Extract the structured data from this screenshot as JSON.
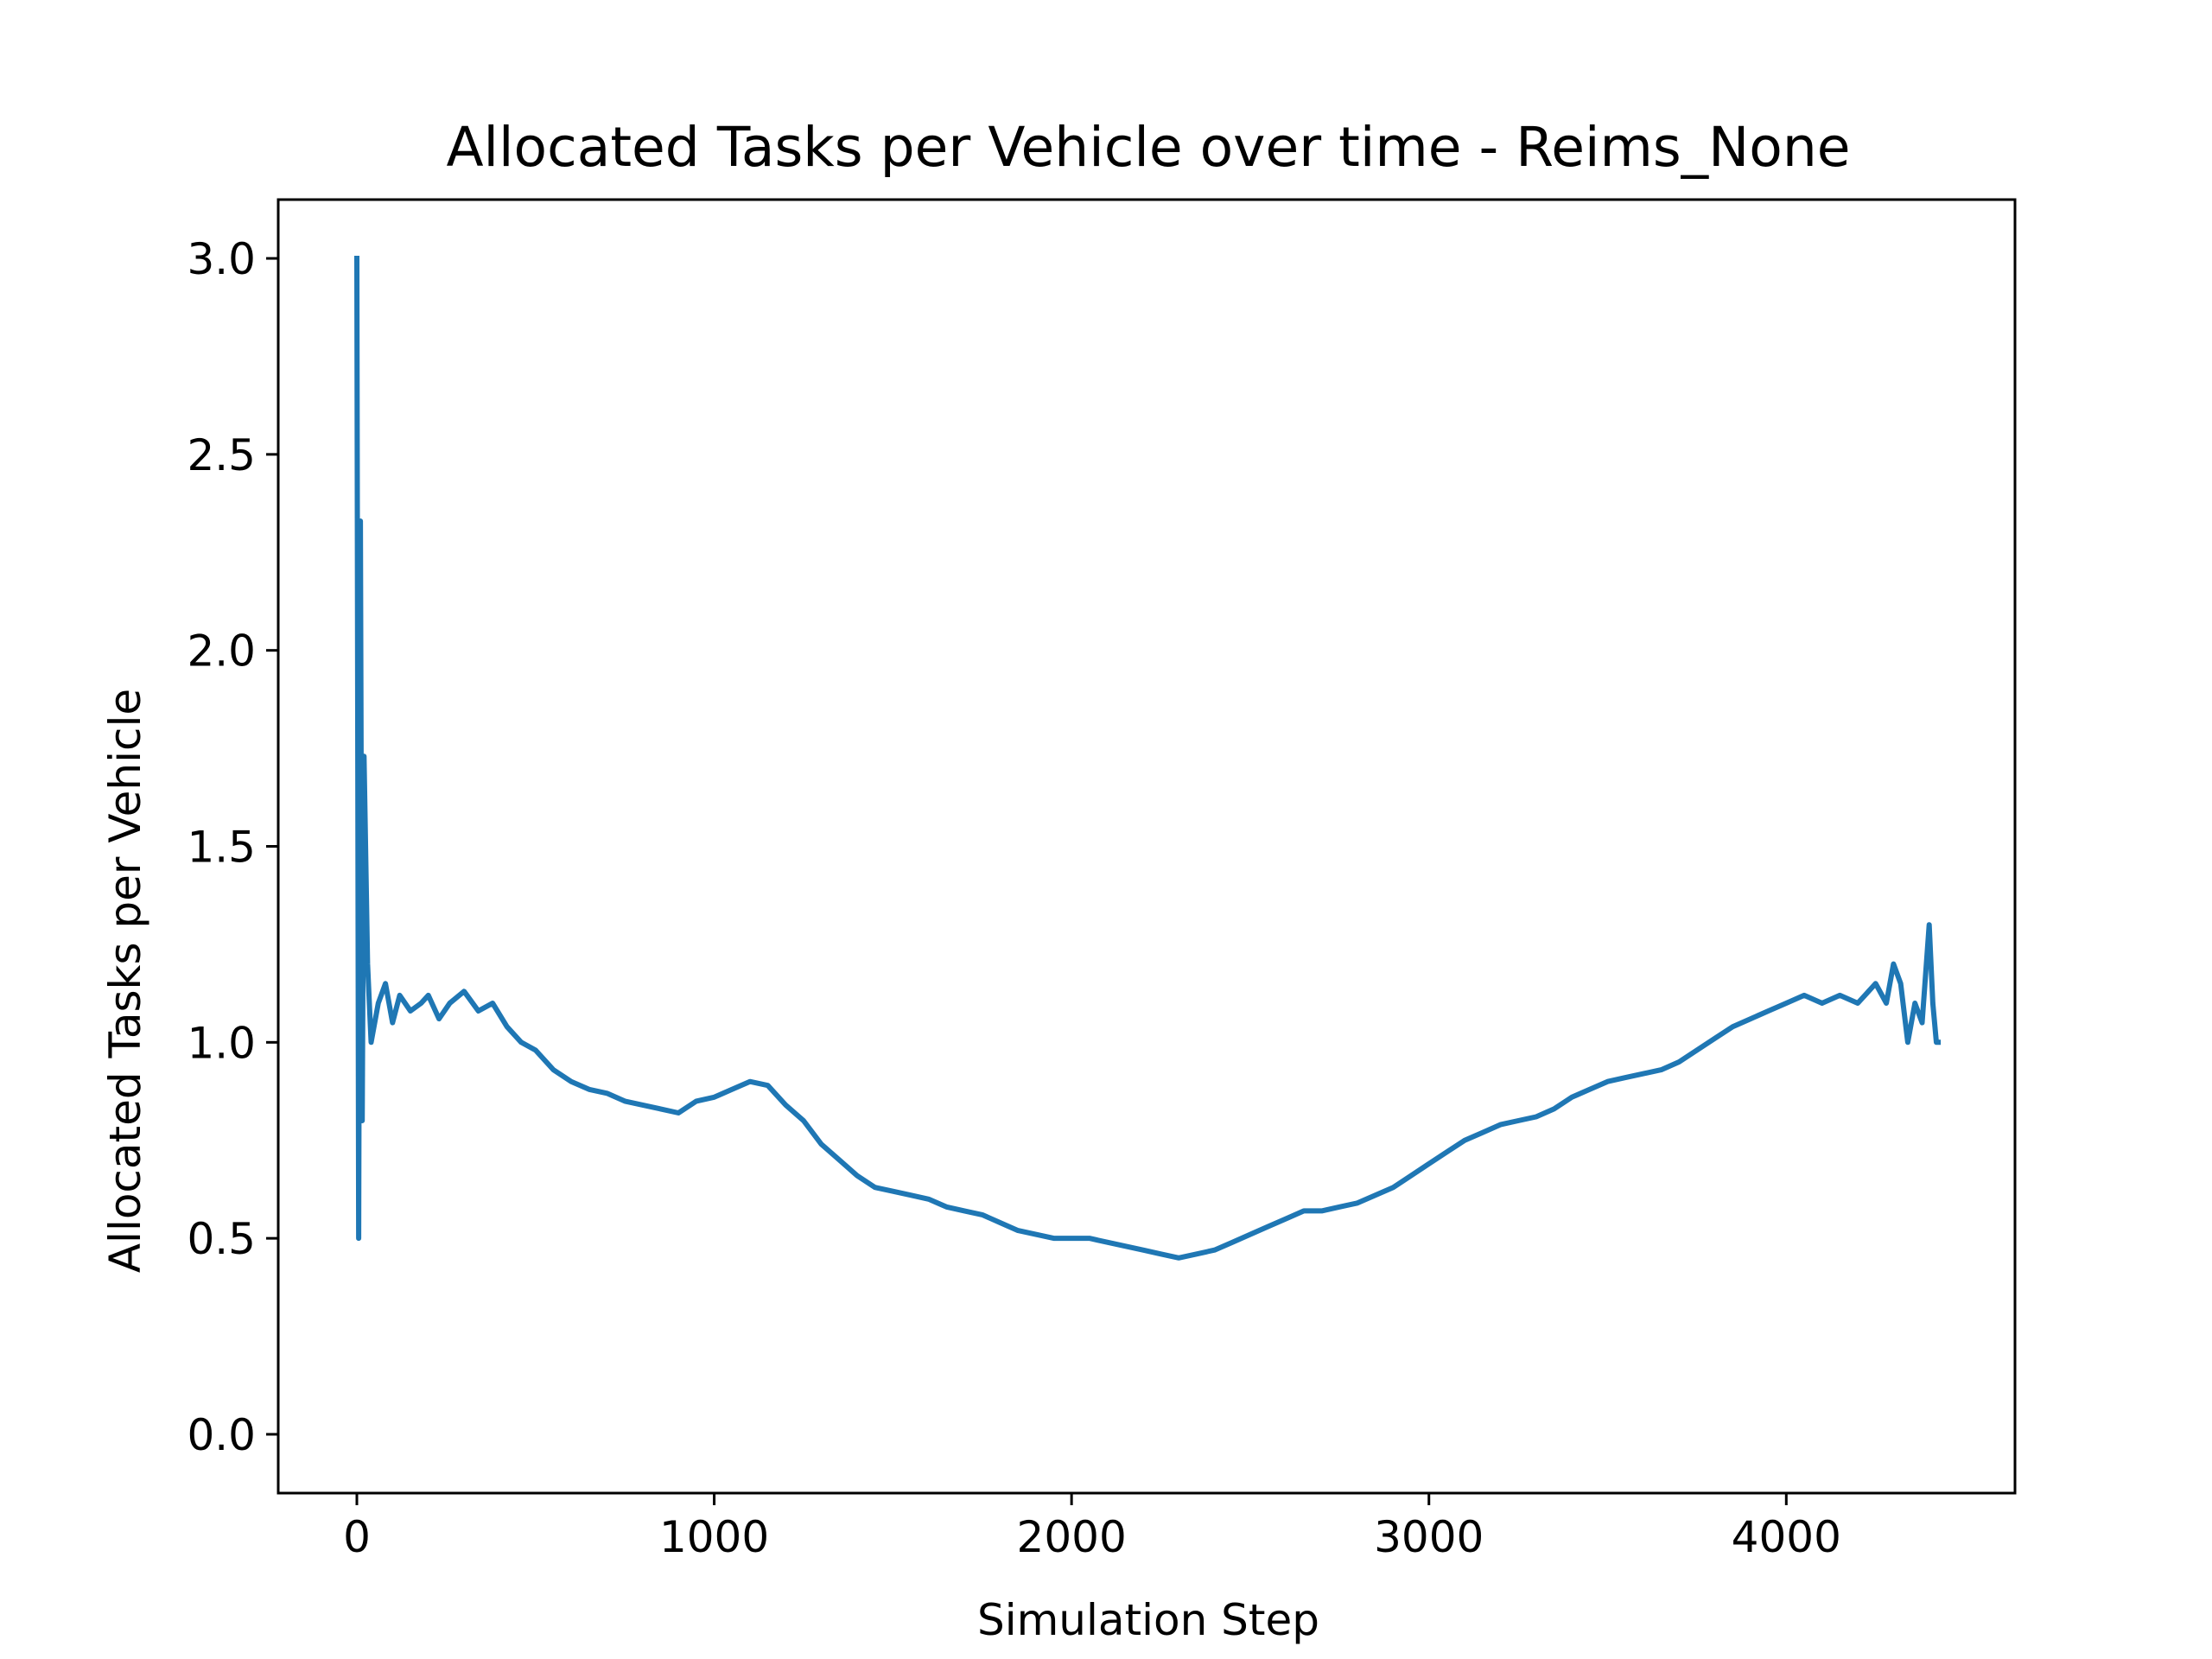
{
  "chart_data": {
    "type": "line",
    "title": "Allocated Tasks per Vehicle over time - Reims_None",
    "xlabel": "Simulation Step",
    "ylabel": "Allocated Tasks per Vehicle",
    "xlim": [
      -220,
      4640
    ],
    "ylim": [
      -0.15,
      3.15
    ],
    "xticks": [
      0,
      1000,
      2000,
      3000,
      4000
    ],
    "xtick_labels": [
      "0",
      "1000",
      "2000",
      "3000",
      "4000"
    ],
    "yticks": [
      0.0,
      0.5,
      1.0,
      1.5,
      2.0,
      2.5,
      3.0
    ],
    "ytick_labels": [
      "0.0",
      "0.5",
      "1.0",
      "1.5",
      "2.0",
      "2.5",
      "3.0"
    ],
    "grid": false,
    "legend": "none",
    "color": "#1f77b4",
    "series": [
      {
        "x": [
          0,
          5,
          10,
          15,
          20,
          30,
          40,
          60,
          80,
          100,
          120,
          150,
          180,
          200,
          230,
          260,
          300,
          340,
          380,
          420,
          460,
          500,
          550,
          600,
          650,
          700,
          750,
          800,
          850,
          900,
          950,
          1000,
          1050,
          1100,
          1150,
          1200,
          1250,
          1300,
          1350,
          1400,
          1450,
          1500,
          1550,
          1600,
          1650,
          1700,
          1750,
          1800,
          1850,
          1900,
          1950,
          2000,
          2050,
          2100,
          2150,
          2200,
          2250,
          2300,
          2350,
          2400,
          2450,
          2500,
          2550,
          2600,
          2650,
          2700,
          2750,
          2800,
          2850,
          2900,
          2950,
          3000,
          3050,
          3100,
          3150,
          3200,
          3250,
          3300,
          3350,
          3400,
          3450,
          3500,
          3550,
          3600,
          3650,
          3700,
          3750,
          3800,
          3850,
          3900,
          3950,
          4000,
          4050,
          4100,
          4150,
          4200,
          4250,
          4280,
          4300,
          4320,
          4340,
          4360,
          4380,
          4400,
          4410,
          4420,
          4425
        ],
        "y": [
          3.0,
          0.5,
          2.33,
          0.8,
          1.73,
          1.2,
          1.0,
          1.1,
          1.15,
          1.05,
          1.12,
          1.08,
          1.1,
          1.12,
          1.06,
          1.1,
          1.13,
          1.08,
          1.1,
          1.04,
          1.0,
          0.98,
          0.93,
          0.9,
          0.88,
          0.87,
          0.85,
          0.84,
          0.83,
          0.82,
          0.85,
          0.86,
          0.88,
          0.9,
          0.89,
          0.84,
          0.8,
          0.74,
          0.7,
          0.66,
          0.63,
          0.62,
          0.61,
          0.6,
          0.58,
          0.57,
          0.56,
          0.54,
          0.52,
          0.51,
          0.5,
          0.5,
          0.5,
          0.49,
          0.48,
          0.47,
          0.46,
          0.45,
          0.46,
          0.47,
          0.49,
          0.51,
          0.53,
          0.55,
          0.57,
          0.57,
          0.58,
          0.59,
          0.61,
          0.63,
          0.66,
          0.69,
          0.72,
          0.75,
          0.77,
          0.79,
          0.8,
          0.81,
          0.83,
          0.86,
          0.88,
          0.9,
          0.91,
          0.92,
          0.93,
          0.95,
          0.98,
          1.01,
          1.04,
          1.06,
          1.08,
          1.1,
          1.12,
          1.1,
          1.12,
          1.1,
          1.15,
          1.1,
          1.2,
          1.15,
          1.0,
          1.1,
          1.05,
          1.3,
          1.1,
          1.0,
          1.0
        ]
      }
    ]
  }
}
